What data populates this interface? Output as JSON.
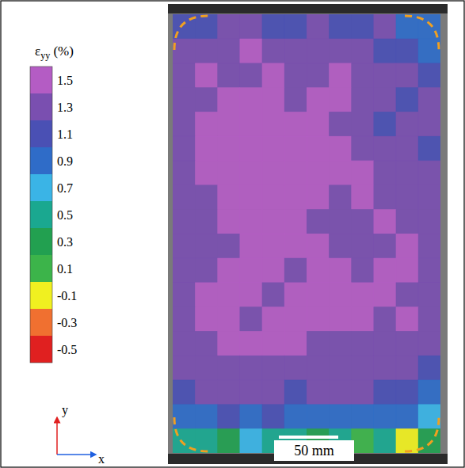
{
  "chart_data": {
    "type": "heatmap",
    "tick_labels": false,
    "cells": [
      [
        1.1,
        1.1,
        1.3,
        1.3,
        1.1,
        1.1,
        1.3,
        1.1,
        1.1,
        1.3,
        0.9,
        0.9
      ],
      [
        1.3,
        1.3,
        1.3,
        1.5,
        1.3,
        1.3,
        1.3,
        1.3,
        1.3,
        1.1,
        1.1,
        0.9
      ],
      [
        1.3,
        1.5,
        1.3,
        1.3,
        1.5,
        1.3,
        1.3,
        1.5,
        1.3,
        1.3,
        1.3,
        1.1
      ],
      [
        1.3,
        1.3,
        1.5,
        1.5,
        1.5,
        1.3,
        1.5,
        1.5,
        1.3,
        1.3,
        1.1,
        1.3
      ],
      [
        1.3,
        1.5,
        1.5,
        1.5,
        1.5,
        1.5,
        1.5,
        1.3,
        1.3,
        1.1,
        1.3,
        1.3
      ],
      [
        1.3,
        1.5,
        1.5,
        1.5,
        1.5,
        1.5,
        1.5,
        1.5,
        1.3,
        1.3,
        1.3,
        1.1
      ],
      [
        1.3,
        1.5,
        1.5,
        1.5,
        1.5,
        1.5,
        1.5,
        1.5,
        1.5,
        1.3,
        1.3,
        1.3
      ],
      [
        1.3,
        1.3,
        1.5,
        1.5,
        1.5,
        1.5,
        1.5,
        1.3,
        1.5,
        1.3,
        1.3,
        1.3
      ],
      [
        1.3,
        1.3,
        1.5,
        1.5,
        1.5,
        1.5,
        1.3,
        1.3,
        1.3,
        1.5,
        1.3,
        1.3
      ],
      [
        1.3,
        1.3,
        1.3,
        1.5,
        1.5,
        1.5,
        1.5,
        1.3,
        1.3,
        1.3,
        1.5,
        1.3
      ],
      [
        1.3,
        1.3,
        1.5,
        1.5,
        1.5,
        1.3,
        1.5,
        1.5,
        1.3,
        1.5,
        1.5,
        1.3
      ],
      [
        1.3,
        1.5,
        1.5,
        1.5,
        1.3,
        1.5,
        1.5,
        1.5,
        1.5,
        1.5,
        1.3,
        1.3
      ],
      [
        1.3,
        1.5,
        1.5,
        1.3,
        1.5,
        1.5,
        1.5,
        1.5,
        1.5,
        1.3,
        1.5,
        1.3
      ],
      [
        1.3,
        1.3,
        1.5,
        1.5,
        1.5,
        1.5,
        1.3,
        1.3,
        1.3,
        1.3,
        1.3,
        1.3
      ],
      [
        1.3,
        1.3,
        1.3,
        1.3,
        1.3,
        1.3,
        1.3,
        1.3,
        1.3,
        1.3,
        1.3,
        1.1
      ],
      [
        1.1,
        1.3,
        1.3,
        1.3,
        1.3,
        1.1,
        1.3,
        1.3,
        1.3,
        1.1,
        1.1,
        0.9
      ],
      [
        0.9,
        0.9,
        1.1,
        0.9,
        1.1,
        0.9,
        0.9,
        0.9,
        0.9,
        0.9,
        0.9,
        0.7
      ],
      [
        0.5,
        0.5,
        0.3,
        0.7,
        0.5,
        0.5,
        0.3,
        0.5,
        0.1,
        0.5,
        -0.1,
        0.3
      ]
    ],
    "colorbar": {
      "label": "εyy (%)",
      "range": [
        -0.5,
        1.5
      ],
      "ticks": [
        1.5,
        1.3,
        1.1,
        0.9,
        0.7,
        0.5,
        0.3,
        0.1,
        -0.1,
        -0.3,
        -0.5
      ]
    },
    "colors": [
      "#b45cc4",
      "#7a4fb0",
      "#4a50b4",
      "#2f6cc8",
      "#3ab4e6",
      "#1aa890",
      "#22a050",
      "#3cb44a",
      "#f0f020",
      "#f07030",
      "#e02020"
    ],
    "annotations": {
      "x_axis": "x",
      "y_axis": "y",
      "scale_bar": {
        "label": "50 mm",
        "length": 50
      }
    }
  }
}
